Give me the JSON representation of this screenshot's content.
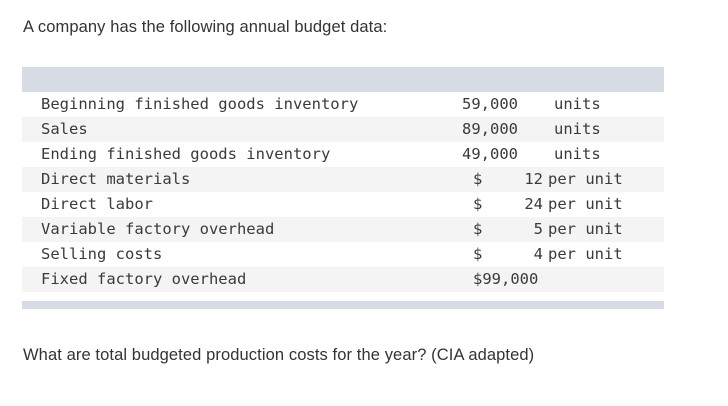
{
  "intro_text": "A company has the following annual budget data:",
  "table": {
    "unit_rows": [
      {
        "label": "Beginning finished goods inventory",
        "amount": "59,000",
        "unit": "units"
      },
      {
        "label": "Sales",
        "amount": "89,000",
        "unit": "units"
      },
      {
        "label": "Ending finished goods inventory",
        "amount": "49,000",
        "unit": "units"
      }
    ],
    "cost_rows": [
      {
        "label": "Direct materials",
        "currency": "$",
        "amount": "12",
        "unit": "per unit"
      },
      {
        "label": "Direct labor",
        "currency": "$",
        "amount": "24",
        "unit": "per unit"
      },
      {
        "label": "Variable factory overhead",
        "currency": "$",
        "amount": "5",
        "unit": "per unit"
      },
      {
        "label": "Selling costs",
        "currency": "$",
        "amount": "4",
        "unit": "per unit"
      }
    ],
    "fixed_row": {
      "label": "Fixed factory overhead",
      "amount": "$99,000"
    }
  },
  "question_text": "What are total budgeted production costs for the year? (CIA adapted)"
}
